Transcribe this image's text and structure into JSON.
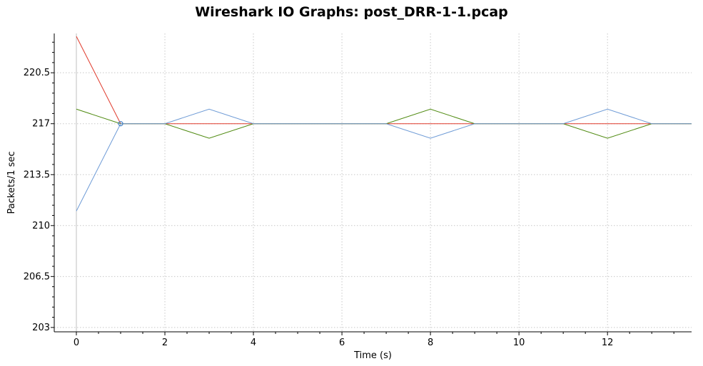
{
  "chart_data": {
    "type": "line",
    "title": "Wireshark IO Graphs: post_DRR-1-1.pcap",
    "xlabel": "Time (s)",
    "ylabel": "Packets/1 sec",
    "xlim": [
      -0.5,
      13.9
    ],
    "ylim": [
      202.7,
      223.2
    ],
    "x_ticks": [
      0,
      2,
      4,
      6,
      8,
      10,
      12
    ],
    "x_tick_labels": [
      "0",
      "2",
      "4",
      "6",
      "8",
      "10",
      "12"
    ],
    "y_ticks": [
      203,
      206.5,
      210,
      213.5,
      217,
      220.5
    ],
    "y_tick_labels": [
      "203",
      "206.5",
      "210",
      "213.5",
      "217",
      "220.5"
    ],
    "grid": true,
    "x": [
      0,
      1,
      2,
      3,
      4,
      5,
      6,
      7,
      8,
      9,
      10,
      11,
      12,
      13,
      14
    ],
    "series": [
      {
        "color": "#e03a2c",
        "values": [
          223,
          217,
          217,
          217,
          217,
          217,
          217,
          217,
          217,
          217,
          217,
          217,
          217,
          217,
          217
        ]
      },
      {
        "color": "#4f8a10",
        "values": [
          218,
          217,
          217,
          216,
          217,
          217,
          217,
          217,
          218,
          217,
          217,
          217,
          216,
          217,
          217
        ]
      },
      {
        "color": "#6e9bd6",
        "values": [
          211,
          217,
          217,
          218,
          217,
          217,
          217,
          217,
          216,
          217,
          217,
          217,
          218,
          217,
          217
        ]
      }
    ],
    "marker": {
      "x": 1,
      "y": 217,
      "color": "#4a86c8"
    }
  }
}
